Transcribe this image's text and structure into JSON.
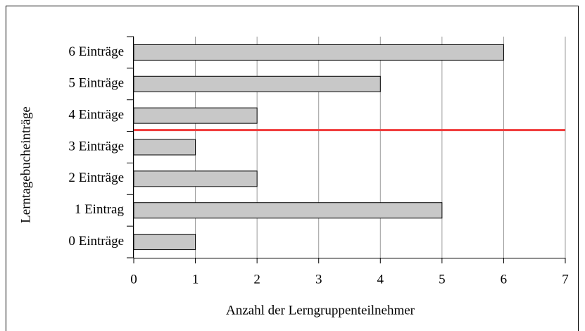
{
  "chart_data": {
    "type": "barh",
    "x_label": "Anzahl der Lerngruppenteilnehmer",
    "y_label": "Lerntagebucheinträge",
    "categories": [
      "6 Einträge",
      "5 Einträge",
      "4 Einträge",
      "3 Einträge",
      "2 Einträge",
      "1 Eintrag",
      "0 Einträge"
    ],
    "values": [
      6,
      4,
      2,
      1,
      2,
      5,
      1
    ],
    "color": "#c8c8c8",
    "xlim": [
      0,
      7
    ],
    "xticks": [
      0,
      1,
      2,
      3,
      4,
      5,
      6,
      7
    ],
    "grid": true
  }
}
